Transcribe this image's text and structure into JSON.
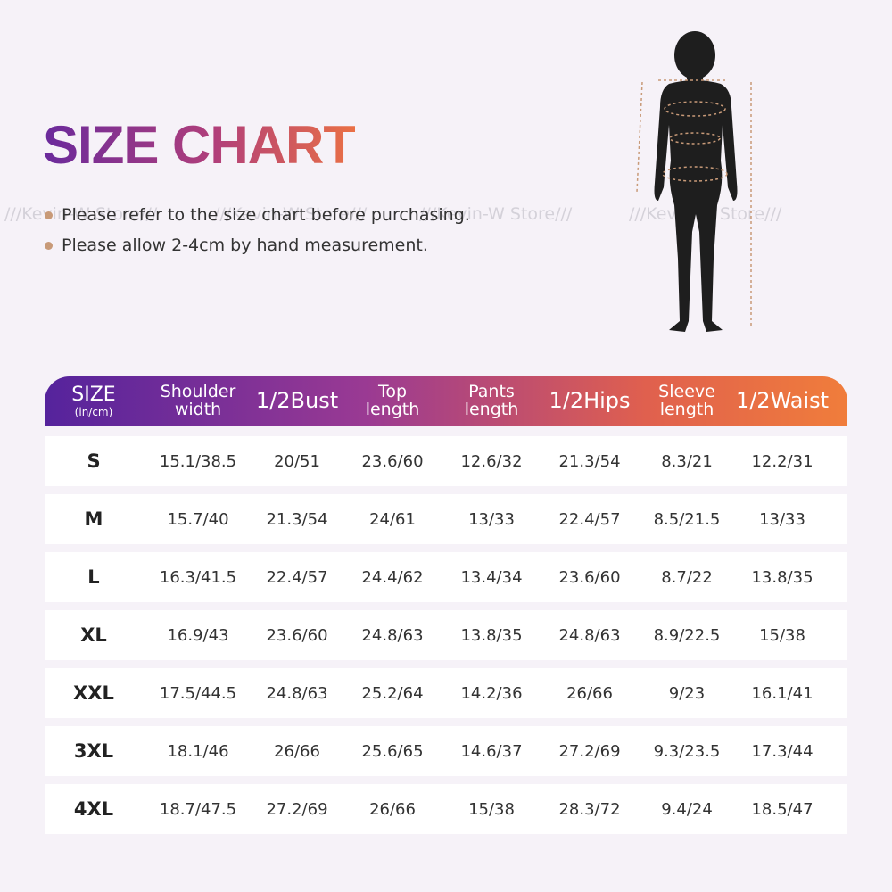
{
  "title": "SIZE CHART",
  "watermark": "///Kevin-W Store///",
  "notes": [
    "Please refer to the size chart before purchasing.",
    "Please allow 2-4cm by hand measurement."
  ],
  "table": {
    "header": {
      "size": "SIZE",
      "unit": "(in/cm)",
      "columns": [
        "Shoulder width",
        "1/2Bust",
        "Top length",
        "Pants length",
        "1/2Hips",
        "Sleeve length",
        "1/2Waist"
      ]
    },
    "rows": [
      [
        "S",
        "15.1/38.5",
        "20/51",
        "23.6/60",
        "12.6/32",
        "21.3/54",
        "8.3/21",
        "12.2/31"
      ],
      [
        "M",
        "15.7/40",
        "21.3/54",
        "24/61",
        "13/33",
        "22.4/57",
        "8.5/21.5",
        "13/33"
      ],
      [
        "L",
        "16.3/41.5",
        "22.4/57",
        "24.4/62",
        "13.4/34",
        "23.6/60",
        "8.7/22",
        "13.8/35"
      ],
      [
        "XL",
        "16.9/43",
        "23.6/60",
        "24.8/63",
        "13.8/35",
        "24.8/63",
        "8.9/22.5",
        "15/38"
      ],
      [
        "XXL",
        "17.5/44.5",
        "24.8/63",
        "25.2/64",
        "14.2/36",
        "26/66",
        "9/23",
        "16.1/41"
      ],
      [
        "3XL",
        "18.1/46",
        "26/66",
        "25.6/65",
        "14.6/37",
        "27.2/69",
        "9.3/23.5",
        "17.3/44"
      ],
      [
        "4XL",
        "18.7/47.5",
        "27.2/69",
        "26/66",
        "15/38",
        "28.3/72",
        "9.4/24",
        "18.5/47"
      ]
    ]
  }
}
